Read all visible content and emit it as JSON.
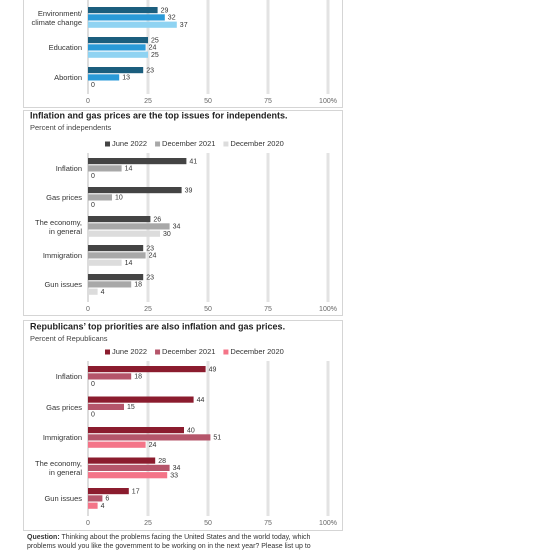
{
  "chart_data": [
    {
      "type": "bar",
      "categories": [
        "Environment/\nclimate change",
        "Education",
        "Abortion"
      ],
      "series": [
        {
          "color": "#1b5e7e",
          "values": [
            29,
            25,
            23
          ]
        },
        {
          "color": "#2a9ad8",
          "values": [
            32,
            24,
            13
          ]
        },
        {
          "color": "#8fd3f2",
          "values": [
            37,
            25,
            0
          ]
        }
      ],
      "xlim": [
        0,
        100
      ],
      "xticks": [
        0,
        25,
        50,
        75,
        {
          "value": 100,
          "label": "100%"
        }
      ],
      "grid": true
    },
    {
      "type": "bar",
      "title": "Inflation and gas prices are the top issues for independents.",
      "subtitle": "Percent of independents",
      "categories": [
        "Inflation",
        "Gas prices",
        "The economy,\nin general",
        "Immigration",
        "Gun issues"
      ],
      "series": [
        {
          "name": "June 2022",
          "color": "#444444",
          "values": [
            41,
            39,
            26,
            23,
            23
          ]
        },
        {
          "name": "December 2021",
          "color": "#a8a8a8",
          "values": [
            14,
            10,
            34,
            24,
            18
          ]
        },
        {
          "name": "December 2020",
          "color": "#dcdcdc",
          "values": [
            0,
            0,
            30,
            14,
            4
          ]
        }
      ],
      "xlim": [
        0,
        100
      ],
      "xticks": [
        0,
        25,
        50,
        75,
        {
          "value": 100,
          "label": "100%"
        }
      ],
      "grid": true
    },
    {
      "type": "bar",
      "title": "Republicans’ top priorities are also inflation and gas prices.",
      "subtitle": "Percent of Republicans",
      "categories": [
        "Inflation",
        "Gas prices",
        "Immigration",
        "The economy,\nin general",
        "Gun issues"
      ],
      "series": [
        {
          "name": "June 2022",
          "color": "#8b1c2e",
          "values": [
            49,
            44,
            40,
            28,
            17
          ]
        },
        {
          "name": "December 2021",
          "color": "#b5556a",
          "values": [
            18,
            15,
            51,
            34,
            6
          ]
        },
        {
          "name": "December 2020",
          "color": "#f47488",
          "values": [
            0,
            0,
            24,
            33,
            4
          ]
        }
      ],
      "xlim": [
        0,
        100
      ],
      "xticks": [
        0,
        25,
        50,
        75,
        {
          "value": 100,
          "label": "100%"
        }
      ],
      "grid": true
    }
  ],
  "footnote": {
    "label": "Question:",
    "text": "Thinking about the problems facing the United States and the world today, which problems would you like the government to be working on in the next year? Please list up to"
  }
}
